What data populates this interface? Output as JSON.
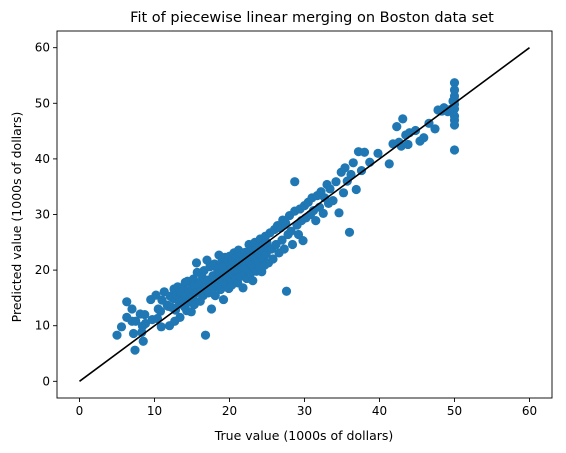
{
  "chart_data": {
    "type": "scatter",
    "title": "Fit of piecewise linear merging on Boston data set",
    "xlabel": "True value (1000s of dollars)",
    "ylabel": "Predicted value (1000s of dollars)",
    "xlim": [
      -3,
      63
    ],
    "ylim": [
      -3,
      63
    ],
    "xticks": [
      0,
      10,
      20,
      30,
      40,
      50,
      60
    ],
    "yticks": [
      0,
      10,
      20,
      30,
      40,
      50,
      60
    ],
    "grid": false,
    "colors": {
      "points": "#1f77b4",
      "reference_line": "#000000",
      "axes": "#000000"
    },
    "reference_line": {
      "from": [
        0,
        0
      ],
      "to": [
        60,
        60
      ]
    },
    "points": [
      [
        5.0,
        8.3
      ],
      [
        5.6,
        9.8
      ],
      [
        6.3,
        14.3
      ],
      [
        6.3,
        11.5
      ],
      [
        7.0,
        13.0
      ],
      [
        7.0,
        10.8
      ],
      [
        7.2,
        8.6
      ],
      [
        7.4,
        5.6
      ],
      [
        7.5,
        10.8
      ],
      [
        8.1,
        12.1
      ],
      [
        8.3,
        8.8
      ],
      [
        8.4,
        9.9
      ],
      [
        8.5,
        7.2
      ],
      [
        8.7,
        12.0
      ],
      [
        8.8,
        10.4
      ],
      [
        9.5,
        14.7
      ],
      [
        9.7,
        11.1
      ],
      [
        10.2,
        15.5
      ],
      [
        10.4,
        11.3
      ],
      [
        10.5,
        13.0
      ],
      [
        10.8,
        12.6
      ],
      [
        10.9,
        9.8
      ],
      [
        11.0,
        14.6
      ],
      [
        11.3,
        16.1
      ],
      [
        11.7,
        13.7
      ],
      [
        11.8,
        13.5
      ],
      [
        12.0,
        10.0
      ],
      [
        12.1,
        15.3
      ],
      [
        12.3,
        13.3
      ],
      [
        12.5,
        14.9
      ],
      [
        12.6,
        16.6
      ],
      [
        12.7,
        10.8
      ],
      [
        12.8,
        12.8
      ],
      [
        13.0,
        15.4
      ],
      [
        13.1,
        17.0
      ],
      [
        13.3,
        14.1
      ],
      [
        13.4,
        11.5
      ],
      [
        13.5,
        16.0
      ],
      [
        13.6,
        13.9
      ],
      [
        13.8,
        14.6
      ],
      [
        13.9,
        16.6
      ],
      [
        14.0,
        13.4
      ],
      [
        14.1,
        17.8
      ],
      [
        14.2,
        15.5
      ],
      [
        14.3,
        12.7
      ],
      [
        14.4,
        18.0
      ],
      [
        14.5,
        14.2
      ],
      [
        14.6,
        16.3
      ],
      [
        14.8,
        14.9
      ],
      [
        14.9,
        12.5
      ],
      [
        15.0,
        16.8
      ],
      [
        15.1,
        15.1
      ],
      [
        15.2,
        18.4
      ],
      [
        15.3,
        13.8
      ],
      [
        15.4,
        17.2
      ],
      [
        15.6,
        15.9
      ],
      [
        15.6,
        21.3
      ],
      [
        15.7,
        19.6
      ],
      [
        16.0,
        17.6
      ],
      [
        16.1,
        14.4
      ],
      [
        16.2,
        16.1
      ],
      [
        16.4,
        18.6
      ],
      [
        16.5,
        15.4
      ],
      [
        16.6,
        19.9
      ],
      [
        16.7,
        17.0
      ],
      [
        16.8,
        8.3
      ],
      [
        17.0,
        21.8
      ],
      [
        17.1,
        18.2
      ],
      [
        17.2,
        15.9
      ],
      [
        17.4,
        20.6
      ],
      [
        17.5,
        17.4
      ],
      [
        17.6,
        13.0
      ],
      [
        17.8,
        19.0
      ],
      [
        17.9,
        16.9
      ],
      [
        18.0,
        21.1
      ],
      [
        18.1,
        15.4
      ],
      [
        18.2,
        18.3
      ],
      [
        18.4,
        20.2
      ],
      [
        18.5,
        17.0
      ],
      [
        18.6,
        22.7
      ],
      [
        18.7,
        19.5
      ],
      [
        18.8,
        16.5
      ],
      [
        18.9,
        21.3
      ],
      [
        19.0,
        18.0
      ],
      [
        19.1,
        20.6
      ],
      [
        19.2,
        14.7
      ],
      [
        19.3,
        19.1
      ],
      [
        19.4,
        22.3
      ],
      [
        19.5,
        17.5
      ],
      [
        19.6,
        20.8
      ],
      [
        19.7,
        18.8
      ],
      [
        19.8,
        21.8
      ],
      [
        19.9,
        16.7
      ],
      [
        20.0,
        19.7
      ],
      [
        20.0,
        22.5
      ],
      [
        20.1,
        18.4
      ],
      [
        20.2,
        20.9
      ],
      [
        20.3,
        17.3
      ],
      [
        20.4,
        21.7
      ],
      [
        20.5,
        19.2
      ],
      [
        20.6,
        23.1
      ],
      [
        20.7,
        20.0
      ],
      [
        20.8,
        18.2
      ],
      [
        20.9,
        22.1
      ],
      [
        21.0,
        20.4
      ],
      [
        21.1,
        17.7
      ],
      [
        21.2,
        23.6
      ],
      [
        21.3,
        19.6
      ],
      [
        21.4,
        21.4
      ],
      [
        21.5,
        18.9
      ],
      [
        21.6,
        22.6
      ],
      [
        21.7,
        20.3
      ],
      [
        21.8,
        16.8
      ],
      [
        21.9,
        21.9
      ],
      [
        22.0,
        19.2
      ],
      [
        22.1,
        23.2
      ],
      [
        22.2,
        20.8
      ],
      [
        22.3,
        18.5
      ],
      [
        22.4,
        22.3
      ],
      [
        22.5,
        20.1
      ],
      [
        22.6,
        24.6
      ],
      [
        22.7,
        21.4
      ],
      [
        22.8,
        19.4
      ],
      [
        22.9,
        23.5
      ],
      [
        23.0,
        21.0
      ],
      [
        23.1,
        18.1
      ],
      [
        23.2,
        22.7
      ],
      [
        23.3,
        20.4
      ],
      [
        23.4,
        25.0
      ],
      [
        23.5,
        22.0
      ],
      [
        23.6,
        19.8
      ],
      [
        23.7,
        24.0
      ],
      [
        23.8,
        21.6
      ],
      [
        23.9,
        23.1
      ],
      [
        24.0,
        20.6
      ],
      [
        24.1,
        25.6
      ],
      [
        24.2,
        22.4
      ],
      [
        24.3,
        19.7
      ],
      [
        24.4,
        24.4
      ],
      [
        24.5,
        21.9
      ],
      [
        24.6,
        23.6
      ],
      [
        24.7,
        20.9
      ],
      [
        24.8,
        26.1
      ],
      [
        24.9,
        22.9
      ],
      [
        25.0,
        24.9
      ],
      [
        25.2,
        21.3
      ],
      [
        25.4,
        26.7
      ],
      [
        25.6,
        23.8
      ],
      [
        25.8,
        22.0
      ],
      [
        26.0,
        27.3
      ],
      [
        26.2,
        24.6
      ],
      [
        26.4,
        28.0
      ],
      [
        26.6,
        23.1
      ],
      [
        26.8,
        27.6
      ],
      [
        27.0,
        25.4
      ],
      [
        27.1,
        29.0
      ],
      [
        27.3,
        23.8
      ],
      [
        27.5,
        28.4
      ],
      [
        27.6,
        16.2
      ],
      [
        27.8,
        26.4
      ],
      [
        28.0,
        29.8
      ],
      [
        28.2,
        27.0
      ],
      [
        28.4,
        24.6
      ],
      [
        28.7,
        35.9
      ],
      [
        28.7,
        30.6
      ],
      [
        29.0,
        28.1
      ],
      [
        29.2,
        26.4
      ],
      [
        29.4,
        31.0
      ],
      [
        29.6,
        28.9
      ],
      [
        29.8,
        25.3
      ],
      [
        30.0,
        31.6
      ],
      [
        30.2,
        29.4
      ],
      [
        30.5,
        32.2
      ],
      [
        30.8,
        30.0
      ],
      [
        31.0,
        33.0
      ],
      [
        31.2,
        30.7
      ],
      [
        31.5,
        28.9
      ],
      [
        31.7,
        33.4
      ],
      [
        32.0,
        31.3
      ],
      [
        32.2,
        34.1
      ],
      [
        32.5,
        30.2
      ],
      [
        32.7,
        33.0
      ],
      [
        33.0,
        35.4
      ],
      [
        33.2,
        32.0
      ],
      [
        33.4,
        34.6
      ],
      [
        33.8,
        32.5
      ],
      [
        34.2,
        35.9
      ],
      [
        34.6,
        30.3
      ],
      [
        34.9,
        37.6
      ],
      [
        35.2,
        33.9
      ],
      [
        35.4,
        38.4
      ],
      [
        35.7,
        36.0
      ],
      [
        36.0,
        26.8
      ],
      [
        36.2,
        37.2
      ],
      [
        36.5,
        39.3
      ],
      [
        36.9,
        34.5
      ],
      [
        37.2,
        41.3
      ],
      [
        37.6,
        37.9
      ],
      [
        38.0,
        41.2
      ],
      [
        38.7,
        39.4
      ],
      [
        39.8,
        41.0
      ],
      [
        41.3,
        39.1
      ],
      [
        41.8,
        42.7
      ],
      [
        42.3,
        45.8
      ],
      [
        42.6,
        43.0
      ],
      [
        42.9,
        42.3
      ],
      [
        43.1,
        47.2
      ],
      [
        43.5,
        44.3
      ],
      [
        43.8,
        42.6
      ],
      [
        44.0,
        44.7
      ],
      [
        44.8,
        45.1
      ],
      [
        45.4,
        43.2
      ],
      [
        45.9,
        43.8
      ],
      [
        46.6,
        46.4
      ],
      [
        47.4,
        45.4
      ],
      [
        47.8,
        48.8
      ],
      [
        48.3,
        48.6
      ],
      [
        48.6,
        49.2
      ],
      [
        49.1,
        48.5
      ],
      [
        49.5,
        48.9
      ],
      [
        49.8,
        50.4
      ],
      [
        50.0,
        53.7
      ],
      [
        50.0,
        52.4
      ],
      [
        50.0,
        51.3
      ],
      [
        50.0,
        50.6
      ],
      [
        50.0,
        49.8
      ],
      [
        50.0,
        49.0
      ],
      [
        50.0,
        47.7
      ],
      [
        50.0,
        47.0
      ],
      [
        50.0,
        46.1
      ],
      [
        50.0,
        41.6
      ]
    ]
  }
}
